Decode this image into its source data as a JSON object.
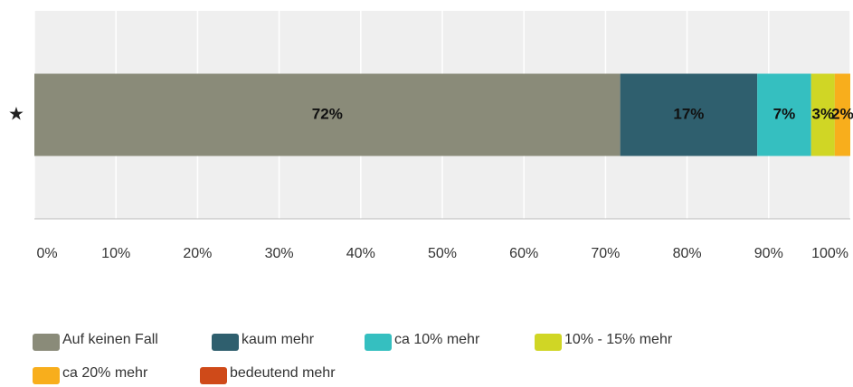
{
  "chart_data": {
    "type": "stacked_barh",
    "categories": [
      "★"
    ],
    "series": [
      {
        "name": "Auf keinen Fall",
        "color": "#8a8b79",
        "values": [
          71.8
        ],
        "value_labels": [
          "72%"
        ]
      },
      {
        "name": "kaum mehr",
        "color": "#2f5f6e",
        "values": [
          16.8
        ],
        "value_labels": [
          "17%"
        ]
      },
      {
        "name": "ca 10% mehr",
        "color": "#35bfc0",
        "values": [
          6.6
        ],
        "value_labels": [
          "7%"
        ]
      },
      {
        "name": "10% - 15% mehr",
        "color": "#d0d625",
        "values": [
          2.9
        ],
        "value_labels": [
          "3%"
        ]
      },
      {
        "name": "ca 20% mehr",
        "color": "#f8ae1c",
        "values": [
          1.9
        ],
        "value_labels": [
          "2%"
        ]
      },
      {
        "name": "bedeutend mehr",
        "color": "#cf4a19",
        "values": [
          0
        ],
        "value_labels": [
          null
        ]
      }
    ],
    "xlim": [
      0,
      100
    ],
    "xticks": [
      {
        "value": 0,
        "label": "0%"
      },
      {
        "value": 10,
        "label": "10%"
      },
      {
        "value": 20,
        "label": "20%"
      },
      {
        "value": 30,
        "label": "30%"
      },
      {
        "value": 40,
        "label": "40%"
      },
      {
        "value": 50,
        "label": "50%"
      },
      {
        "value": 60,
        "label": "60%"
      },
      {
        "value": 70,
        "label": "70%"
      },
      {
        "value": 80,
        "label": "80%"
      },
      {
        "value": 90,
        "label": "90%"
      },
      {
        "value": 100,
        "label": "100%"
      }
    ],
    "grid": true
  }
}
